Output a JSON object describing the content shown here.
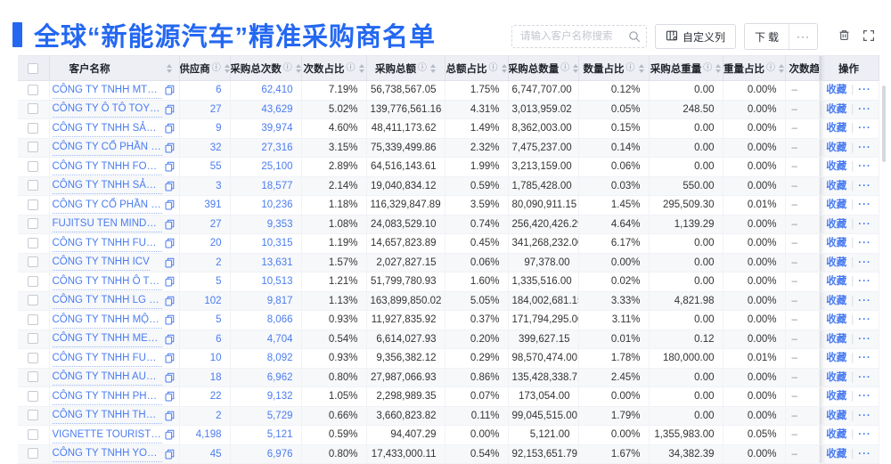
{
  "header": {
    "title": "全球“新能源汽车”精准采购商名单"
  },
  "toolbar": {
    "search_placeholder": "请输入客户名称搜索",
    "custom_columns_label": "自定义列",
    "download_label": "下载",
    "more_label": "···"
  },
  "colors": {
    "accent": "#2468f2",
    "link": "#4a7cf0",
    "header_bg": "#edeff4"
  },
  "table": {
    "action_labels": {
      "favorite": "收藏",
      "divider": "|",
      "more": "···"
    },
    "columns": [
      {
        "key": "checkbox",
        "label": "",
        "info": false,
        "sortable": false
      },
      {
        "key": "name",
        "label": "客户名称",
        "info": false,
        "sortable": true
      },
      {
        "key": "supplier",
        "label": "供应商",
        "info": true,
        "sortable": true
      },
      {
        "key": "purchase_count",
        "label": "采购总次数",
        "info": true,
        "sortable": true
      },
      {
        "key": "count_pct",
        "label": "次数占比",
        "info": true,
        "sortable": true
      },
      {
        "key": "amount",
        "label": "采购总额",
        "info": true,
        "sortable": true
      },
      {
        "key": "amount_pct",
        "label": "总额占比",
        "info": true,
        "sortable": true
      },
      {
        "key": "quantity",
        "label": "采购总数量",
        "info": true,
        "sortable": true
      },
      {
        "key": "quantity_pct",
        "label": "数量占比",
        "info": true,
        "sortable": true
      },
      {
        "key": "weight",
        "label": "采购总重量",
        "info": true,
        "sortable": true
      },
      {
        "key": "weight_pct",
        "label": "重量占比",
        "info": true,
        "sortable": true
      },
      {
        "key": "trend",
        "label": "次数趋势",
        "info": false,
        "sortable": false
      },
      {
        "key": "actions",
        "label": "操作",
        "info": false,
        "sortable": false
      }
    ],
    "rows": [
      {
        "name": "CÔNG TY TNHH MTV SẢN XUẤ...",
        "supplier": "6",
        "purchase_count": "62,410",
        "count_pct": "7.19%",
        "amount": "56,738,567.05",
        "amount_pct": "1.75%",
        "quantity": "6,747,707.00",
        "quantity_pct": "0.12%",
        "weight": "0.00",
        "weight_pct": "0.00%",
        "trend": "–"
      },
      {
        "name": "CÔNG TY Ô TÔ TOYOTA VIỆT ...",
        "supplier": "27",
        "purchase_count": "43,629",
        "count_pct": "5.02%",
        "amount": "139,776,561.16",
        "amount_pct": "4.31%",
        "quantity": "3,013,959.02",
        "quantity_pct": "0.05%",
        "weight": "248.50",
        "weight_pct": "0.00%",
        "trend": "–"
      },
      {
        "name": "CÔNG TY TNHH SẢN XUẤT VÀ ...",
        "supplier": "9",
        "purchase_count": "39,974",
        "count_pct": "4.60%",
        "amount": "48,411,173.62",
        "amount_pct": "1.49%",
        "quantity": "8,362,003.00",
        "quantity_pct": "0.15%",
        "weight": "0.00",
        "weight_pct": "0.00%",
        "trend": "–"
      },
      {
        "name": "CÔNG TY CỔ PHẦN SẢN XUẤT...",
        "supplier": "32",
        "purchase_count": "27,316",
        "count_pct": "3.15%",
        "amount": "75,339,499.86",
        "amount_pct": "2.32%",
        "quantity": "7,475,237.00",
        "quantity_pct": "0.14%",
        "weight": "0.00",
        "weight_pct": "0.00%",
        "trend": "–"
      },
      {
        "name": "CÔNG TY TNHH FORD VIỆT NAM",
        "supplier": "55",
        "purchase_count": "25,100",
        "count_pct": "2.89%",
        "amount": "64,516,143.61",
        "amount_pct": "1.99%",
        "quantity": "3,213,159.00",
        "quantity_pct": "0.06%",
        "weight": "0.00",
        "weight_pct": "0.00%",
        "trend": "–"
      },
      {
        "name": "CÔNG TY TNHH SẢN XUẤT VÀ ...",
        "supplier": "3",
        "purchase_count": "18,577",
        "count_pct": "2.14%",
        "amount": "19,040,834.12",
        "amount_pct": "0.59%",
        "quantity": "1,785,428.00",
        "quantity_pct": "0.03%",
        "weight": "550.00",
        "weight_pct": "0.00%",
        "trend": "–"
      },
      {
        "name": "CÔNG TY CỔ PHẦN SẢN XUẤT...",
        "supplier": "391",
        "purchase_count": "10,236",
        "count_pct": "1.18%",
        "amount": "116,329,847.89",
        "amount_pct": "3.59%",
        "quantity": "80,090,911.15",
        "quantity_pct": "1.45%",
        "weight": "295,509.30",
        "weight_pct": "0.01%",
        "trend": "–"
      },
      {
        "name": "FUJITSU TEN MINDA INDIA PVT...",
        "supplier": "27",
        "purchase_count": "9,353",
        "count_pct": "1.08%",
        "amount": "24,083,529.10",
        "amount_pct": "0.74%",
        "quantity": "256,420,426.29",
        "quantity_pct": "4.64%",
        "weight": "1,139.29",
        "weight_pct": "0.00%",
        "trend": "–"
      },
      {
        "name": "CÔNG TY TNHH FURUKAWA A...",
        "supplier": "20",
        "purchase_count": "10,315",
        "count_pct": "1.19%",
        "amount": "14,657,823.89",
        "amount_pct": "0.45%",
        "quantity": "341,268,232.00",
        "quantity_pct": "6.17%",
        "weight": "0.00",
        "weight_pct": "0.00%",
        "trend": "–"
      },
      {
        "name": "CÔNG TY TNHH ICV",
        "supplier": "2",
        "purchase_count": "13,631",
        "count_pct": "1.57%",
        "amount": "2,027,827.15",
        "amount_pct": "0.06%",
        "quantity": "97,378.00",
        "quantity_pct": "0.00%",
        "weight": "0.00",
        "weight_pct": "0.00%",
        "trend": "–"
      },
      {
        "name": "CÔNG TY TNHH Ô TÔ MITSUBI...",
        "supplier": "5",
        "purchase_count": "10,513",
        "count_pct": "1.21%",
        "amount": "51,799,780.93",
        "amount_pct": "1.60%",
        "quantity": "1,335,516.00",
        "quantity_pct": "0.02%",
        "weight": "0.00",
        "weight_pct": "0.00%",
        "trend": "–"
      },
      {
        "name": "CÔNG TY TNHH LG ELECTRON...",
        "supplier": "102",
        "purchase_count": "9,817",
        "count_pct": "1.13%",
        "amount": "163,899,850.02",
        "amount_pct": "5.05%",
        "quantity": "184,002,681.15",
        "quantity_pct": "3.33%",
        "weight": "4,821.98",
        "weight_pct": "0.00%",
        "trend": "–"
      },
      {
        "name": "CÔNG TY TNHH MỘT THÀNH V...",
        "supplier": "5",
        "purchase_count": "8,066",
        "count_pct": "0.93%",
        "amount": "11,927,835.92",
        "amount_pct": "0.37%",
        "quantity": "171,794,295.00",
        "quantity_pct": "3.11%",
        "weight": "0.00",
        "weight_pct": "0.00%",
        "trend": "–"
      },
      {
        "name": "CÔNG TY TNHH MERCEDES–B...",
        "supplier": "6",
        "purchase_count": "4,704",
        "count_pct": "0.54%",
        "amount": "6,614,027.93",
        "amount_pct": "0.20%",
        "quantity": "399,627.15",
        "quantity_pct": "0.01%",
        "weight": "0.12",
        "weight_pct": "0.00%",
        "trend": "–"
      },
      {
        "name": "CÔNG TY TNHH FURUKAWA A...",
        "supplier": "10",
        "purchase_count": "8,092",
        "count_pct": "0.93%",
        "amount": "9,356,382.12",
        "amount_pct": "0.29%",
        "quantity": "98,570,474.00",
        "quantity_pct": "1.78%",
        "weight": "180,000.00",
        "weight_pct": "0.01%",
        "trend": "–"
      },
      {
        "name": "CÔNG TY TNHH AUTEL VIỆT N...",
        "supplier": "18",
        "purchase_count": "6,962",
        "count_pct": "0.80%",
        "amount": "27,987,066.93",
        "amount_pct": "0.86%",
        "quantity": "135,428,338.71",
        "quantity_pct": "2.45%",
        "weight": "0.00",
        "weight_pct": "0.00%",
        "trend": "–"
      },
      {
        "name": "CÔNG TY TNHH PHÂN PHỐI T...",
        "supplier": "22",
        "purchase_count": "9,132",
        "count_pct": "1.05%",
        "amount": "2,298,989.35",
        "amount_pct": "0.07%",
        "quantity": "173,054.00",
        "quantity_pct": "0.00%",
        "weight": "0.00",
        "weight_pct": "0.00%",
        "trend": "–"
      },
      {
        "name": "CÔNG TY TNHH THN AUTOPAR...",
        "supplier": "2",
        "purchase_count": "5,729",
        "count_pct": "0.66%",
        "amount": "3,660,823.82",
        "amount_pct": "0.11%",
        "quantity": "99,045,515.00",
        "quantity_pct": "1.79%",
        "weight": "0.00",
        "weight_pct": "0.00%",
        "trend": "–"
      },
      {
        "name": "VIGNETTE TOURISTIQUE G UNI...",
        "supplier": "4,198",
        "purchase_count": "5,121",
        "count_pct": "0.59%",
        "amount": "94,407.29",
        "amount_pct": "0.00%",
        "quantity": "5,121.00",
        "quantity_pct": "0.00%",
        "weight": "1,355,983.00",
        "weight_pct": "0.05%",
        "trend": "–"
      },
      {
        "name": "CÔNG TY TNHH YOKOWO VIỆT...",
        "supplier": "45",
        "purchase_count": "6,976",
        "count_pct": "0.80%",
        "amount": "17,433,000.11",
        "amount_pct": "0.54%",
        "quantity": "92,153,651.79",
        "quantity_pct": "1.67%",
        "weight": "34,382.39",
        "weight_pct": "0.00%",
        "trend": "–"
      }
    ]
  }
}
